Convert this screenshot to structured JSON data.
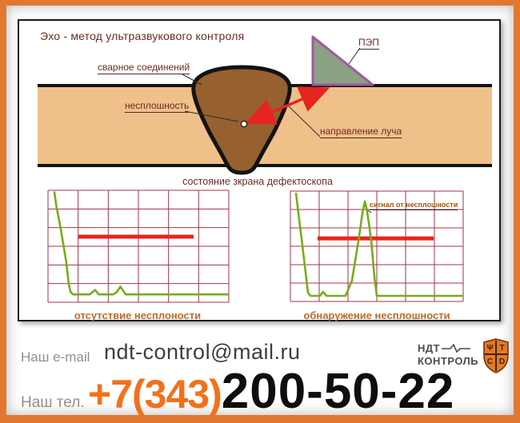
{
  "diagram": {
    "title": "Эхо - метод ультразвукового контроля",
    "labels": {
      "weld_joint": "сварное соединений",
      "discontinuity": "несплошность",
      "beam_direction": "направление луча",
      "probe": "ПЭП",
      "screen_state": "состояние зкрана дефектоскопа",
      "signal_from_defect": "сигнал от несплошности",
      "caption_no_defect": "отсутствие несплоности",
      "caption_defect_found": "обнаружение несплошности"
    },
    "colors": {
      "frame_orange": "#E0792F",
      "plate_tan": "#EFC08A",
      "weld_brown": "#96602F",
      "probe_fill": "#8CA083",
      "probe_border": "#9E57A0",
      "beam_red": "#E62420",
      "label_maroon": "#6E2A1F",
      "caption_orange": "#C06A28"
    }
  },
  "chart_data": [
    {
      "type": "line",
      "title": "отсутствие несплоности",
      "description": "A-scan screen, no discontinuity: initial pulse drops to baseline, only minor noise bumps, no echo crossing the gate",
      "grid": {
        "cols": 6,
        "rows": 6,
        "color": "#A3334A"
      },
      "gate": {
        "y_pct": 41.4,
        "x_from_pct": 16.8,
        "x_to_pct": 80.5,
        "color": "#E8251D",
        "name": "строб"
      },
      "series": [
        {
          "name": "эхо-сигнал",
          "color": "#76AC1B",
          "points_pct": [
            [
              3.5,
              1
            ],
            [
              4.5,
              13
            ],
            [
              7,
              34
            ],
            [
              10,
              63
            ],
            [
              11.5,
              84
            ],
            [
              12.5,
              91
            ],
            [
              14,
              93
            ],
            [
              23,
              93
            ],
            [
              26,
              89
            ],
            [
              28,
              93
            ],
            [
              36,
              93
            ],
            [
              38,
              91
            ],
            [
              40,
              86
            ],
            [
              43,
              93
            ],
            [
              100,
              93
            ]
          ]
        }
      ]
    },
    {
      "type": "line",
      "title": "обнаружение несплошности",
      "description": "A-scan screen, discontinuity detected: large echo peak rises above the gate level",
      "grid": {
        "cols": 6,
        "rows": 6,
        "color": "#A3334A"
      },
      "gate": {
        "y_pct": 42.8,
        "x_from_pct": 15.7,
        "x_to_pct": 82.9,
        "color": "#E8251D",
        "name": "строб"
      },
      "series": [
        {
          "name": "эхо-сигнал",
          "color": "#76AC1B",
          "points_pct": [
            [
              3.2,
              1.4
            ],
            [
              4.6,
              19.6
            ],
            [
              6.9,
              48.6
            ],
            [
              8.8,
              73.9
            ],
            [
              10.2,
              92
            ],
            [
              11.6,
              94.9
            ],
            [
              17.1,
              94.9
            ],
            [
              19,
              91.3
            ],
            [
              20.8,
              94.9
            ],
            [
              31.9,
              94.9
            ],
            [
              35.6,
              81.2
            ],
            [
              39.4,
              44.9
            ],
            [
              41.7,
              19.6
            ],
            [
              43.1,
              9.4
            ],
            [
              44.4,
              18.1
            ],
            [
              46.8,
              44.9
            ],
            [
              48.6,
              77.5
            ],
            [
              50,
              94.9
            ],
            [
              100,
              94.9
            ]
          ]
        }
      ]
    }
  ],
  "contacts": {
    "email_label": "Наш e-mail",
    "email": "ndt-control@mail.ru",
    "phone_label": "Наш тел.",
    "phone_code": "+7(343)",
    "phone_number": "200-50-22"
  },
  "logo": {
    "line1": "НДТ",
    "line2": "КОНТРОЛЬ",
    "shield_glyphs": [
      "Ψ",
      "Т",
      "С",
      "D"
    ]
  }
}
